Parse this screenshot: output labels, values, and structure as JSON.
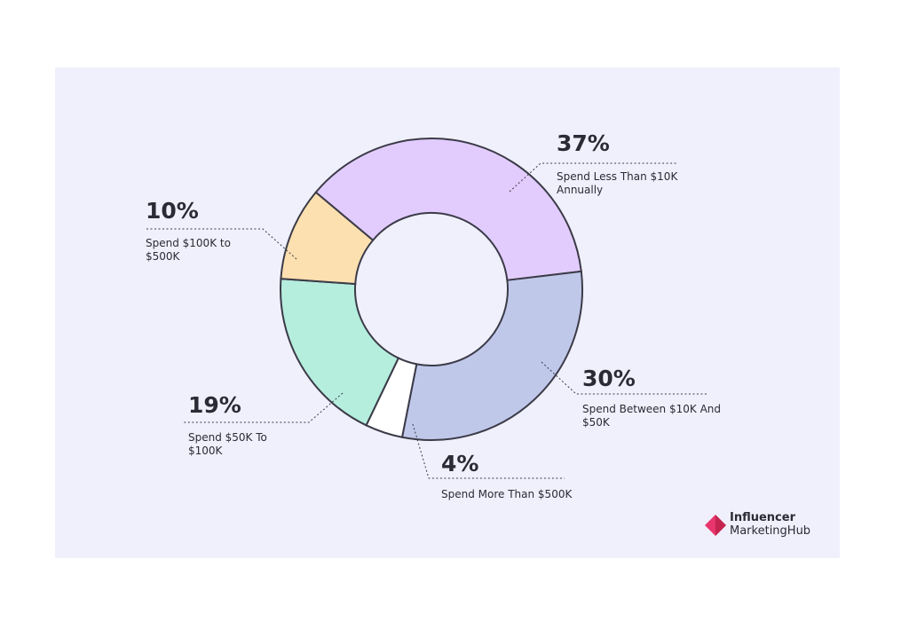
{
  "chart_data": {
    "type": "pie",
    "variant": "donut",
    "slices": [
      {
        "label_pct": "37%",
        "value": 37,
        "label_lines": [
          "Spend Less Than $10K",
          "Annually"
        ],
        "color": "#e2ccfd"
      },
      {
        "label_pct": "30%",
        "value": 30,
        "label_lines": [
          "Spend Between $10K And",
          "$50K"
        ],
        "color": "#c0c8ea"
      },
      {
        "label_pct": "4%",
        "value": 4,
        "label_lines": [
          "Spend More Than $500K"
        ],
        "color": "#ffffff"
      },
      {
        "label_pct": "19%",
        "value": 19,
        "label_lines": [
          "Spend $50K To",
          "$100K"
        ],
        "color": "#b5eedd"
      },
      {
        "label_pct": "10%",
        "value": 10,
        "label_lines": [
          "Spend $100K to",
          "$500K"
        ],
        "color": "#fde0b0"
      }
    ]
  },
  "brand": {
    "line1": "Influencer",
    "line2": "MarketingHub",
    "accent": "#e8356d",
    "icon": "influencer-marketing-hub-logo-icon"
  },
  "colors": {
    "panel": "#f0f0fc",
    "outline": "#3b3b48",
    "text": "#2b2b36"
  }
}
